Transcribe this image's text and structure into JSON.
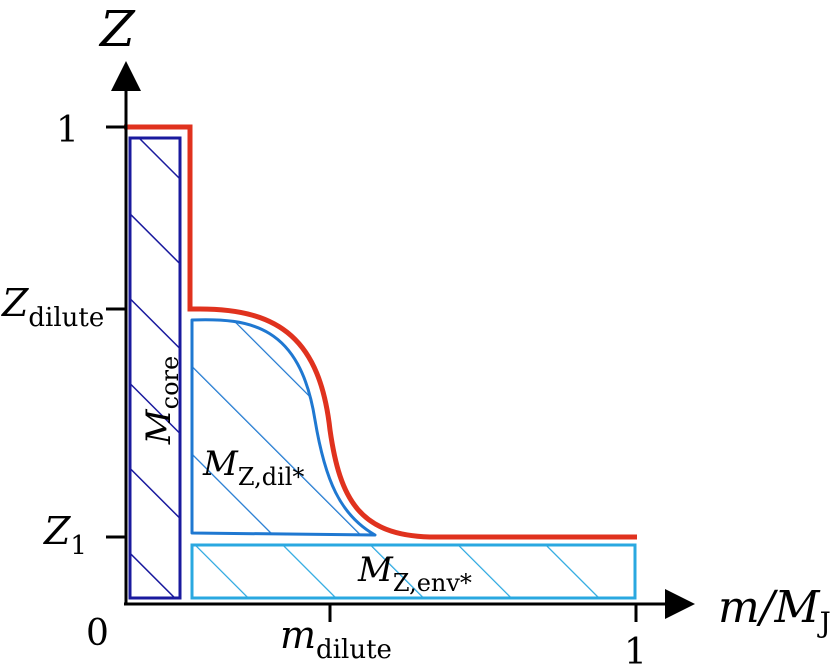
{
  "axes": {
    "y_label": "Z",
    "x_label_main": "m/M",
    "x_label_sub": "J",
    "origin": "0",
    "y_ticks": {
      "one": "1",
      "dilute_main": "Z",
      "dilute_sub": "dilute",
      "z1_main": "Z",
      "z1_sub": "1"
    },
    "x_ticks": {
      "dilute_main": "m",
      "dilute_sub": "dilute",
      "one": "1"
    }
  },
  "regions": {
    "core": {
      "main": "M",
      "sub": "core"
    },
    "dilute": {
      "main": "M",
      "sub": "Z,dil*"
    },
    "envelope": {
      "main": "M",
      "sub": "Z,env*"
    }
  },
  "colors": {
    "profile_line": "#e0321e",
    "core_region": "#1a1a9e",
    "dilute_region": "#1f78d1",
    "envelope_region": "#2aa8e0",
    "axes": "#000000"
  }
}
